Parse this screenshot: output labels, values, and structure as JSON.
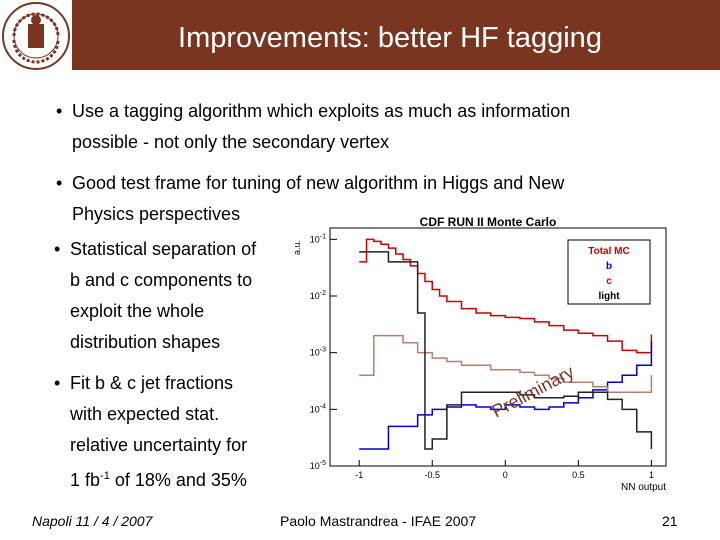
{
  "header": {
    "title": "Improvements: better HF tagging",
    "logo": {
      "icon": "university-seal-icon",
      "text": "NAPOLI · FEDERICO II · UNIVERSITATIS · STUDIORUM"
    },
    "color": "#7a3520"
  },
  "bullets": [
    {
      "lines": [
        "Use a tagging algorithm which exploits as much as information",
        "possible - not only the secondary vertex"
      ]
    },
    {
      "lines": [
        "Good test frame for tuning of new algorithm in Higgs and New",
        "Physics perspectives"
      ]
    },
    {
      "lines": [
        "Statistical separation of",
        "b and c components to",
        "exploit the whole",
        "distribution shapes"
      ]
    },
    {
      "lines": [
        "Fit b & c jet fractions",
        "with expected stat.",
        "relative uncertainty for",
        "1 fb",
        "-1",
        " of 18% and 35%"
      ]
    }
  ],
  "footer": {
    "left": "Napoli 11 / 4 / 2007",
    "center": "Paolo Mastrandrea - IFAE 2007",
    "page": "21"
  },
  "chart_data": {
    "type": "line",
    "title": "CDF RUN II Monte Carlo",
    "xlabel": "NN output",
    "ylabel": "a.u.",
    "xlim": [
      -1.2,
      1.1
    ],
    "ylim_log10": [
      -5,
      -0.8
    ],
    "yscale": "log",
    "x_ticks": [
      "-1",
      "-0.5",
      "0",
      "0.5",
      "1"
    ],
    "y_ticks": [
      "10-1",
      "10-2",
      "10-3",
      "10-4",
      "10-5"
    ],
    "watermark": "Preliminary",
    "legend": {
      "position": "top-right",
      "entries": [
        "Total MC",
        "b",
        "c",
        "light"
      ]
    },
    "series": [
      {
        "name": "Total MC",
        "color": "#cc0000",
        "x": [
          -1.0,
          -0.95,
          -0.9,
          -0.85,
          -0.8,
          -0.75,
          -0.7,
          -0.65,
          -0.6,
          -0.55,
          -0.5,
          -0.45,
          -0.4,
          -0.3,
          -0.2,
          -0.1,
          0.0,
          0.1,
          0.2,
          0.3,
          0.4,
          0.5,
          0.6,
          0.7,
          0.8,
          0.9,
          1.0
        ],
        "y": [
          0.04,
          0.1,
          0.092,
          0.082,
          0.07,
          0.055,
          0.044,
          0.034,
          0.025,
          0.018,
          0.013,
          0.01,
          0.008,
          0.006,
          0.005,
          0.0045,
          0.0042,
          0.004,
          0.0035,
          0.003,
          0.0025,
          0.0022,
          0.002,
          0.0016,
          0.0011,
          0.001,
          0.0021
        ]
      },
      {
        "name": "b",
        "color": "#0000cc",
        "x": [
          -1.0,
          -0.8,
          -0.6,
          -0.5,
          -0.4,
          -0.3,
          -0.2,
          -0.1,
          0.0,
          0.1,
          0.2,
          0.3,
          0.4,
          0.5,
          0.6,
          0.7,
          0.8,
          0.9,
          1.0
        ],
        "y": [
          2e-05,
          5e-05,
          8e-05,
          0.0001,
          0.00011,
          0.00012,
          0.00011,
          0.0001,
          0.00012,
          0.00011,
          0.0001,
          0.00011,
          0.00013,
          0.00016,
          0.00022,
          0.0003,
          0.0004,
          0.0006,
          0.0016
        ]
      },
      {
        "name": "c",
        "color": "#b08070",
        "x": [
          -1.0,
          -0.9,
          -0.8,
          -0.7,
          -0.6,
          -0.5,
          -0.4,
          -0.3,
          -0.2,
          -0.1,
          0.0,
          0.1,
          0.2,
          0.3,
          0.4,
          0.5,
          0.6,
          0.7,
          0.8,
          0.9,
          1.0
        ],
        "y": [
          0.0004,
          0.002,
          0.002,
          0.0015,
          0.001,
          0.0008,
          0.0007,
          0.0006,
          0.0006,
          0.0005,
          0.0005,
          0.00045,
          0.0004,
          0.00035,
          0.0003,
          0.0003,
          0.00025,
          0.0002,
          0.0002,
          0.0002,
          0.0004
        ]
      },
      {
        "name": "light",
        "color": "#222222",
        "x": [
          -1.0,
          -0.8,
          -0.6,
          -0.55,
          -0.5,
          -0.4,
          -0.3,
          -0.2,
          -0.1,
          0.0,
          0.1,
          0.2,
          0.3,
          0.4,
          0.5,
          0.6,
          0.7,
          0.8,
          0.9,
          1.0
        ],
        "y": [
          0.06,
          0.04,
          0.005,
          2e-05,
          3e-05,
          0.00012,
          0.0002,
          0.0002,
          0.0002,
          0.0002,
          0.00018,
          0.00016,
          0.00016,
          0.00017,
          0.0002,
          0.0002,
          0.00015,
          0.0001,
          4e-05,
          2e-05
        ]
      }
    ]
  }
}
